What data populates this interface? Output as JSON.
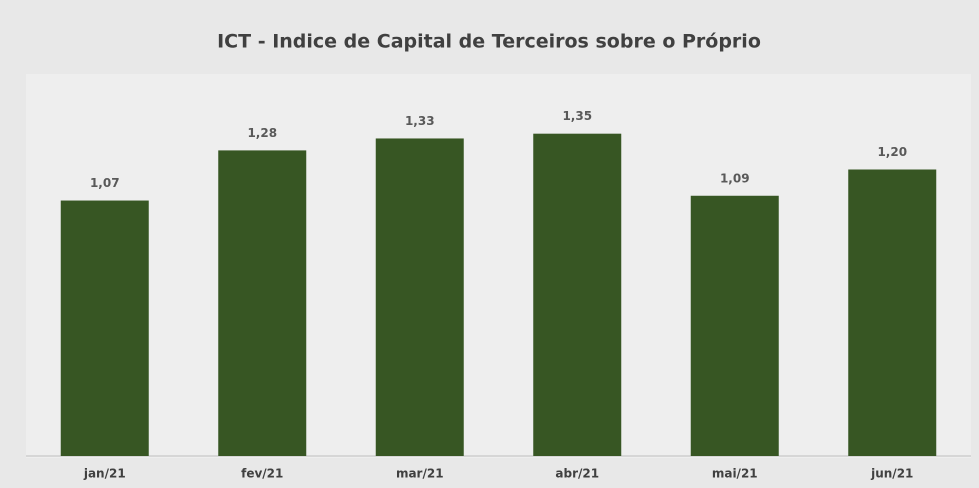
{
  "chart_data": {
    "type": "bar",
    "title": "ICT - Indice de Capital de Terceiros sobre o Próprio",
    "categories": [
      "jan/21",
      "fev/21",
      "mar/21",
      "abr/21",
      "mai/21",
      "jun/21"
    ],
    "values": [
      1.07,
      1.28,
      1.33,
      1.35,
      1.09,
      1.2
    ],
    "value_labels": [
      "1,07",
      "1,28",
      "1,33",
      "1,35",
      "1,09",
      "1,20"
    ],
    "color": "#375623",
    "ylim": [
      0,
      1.6
    ]
  }
}
